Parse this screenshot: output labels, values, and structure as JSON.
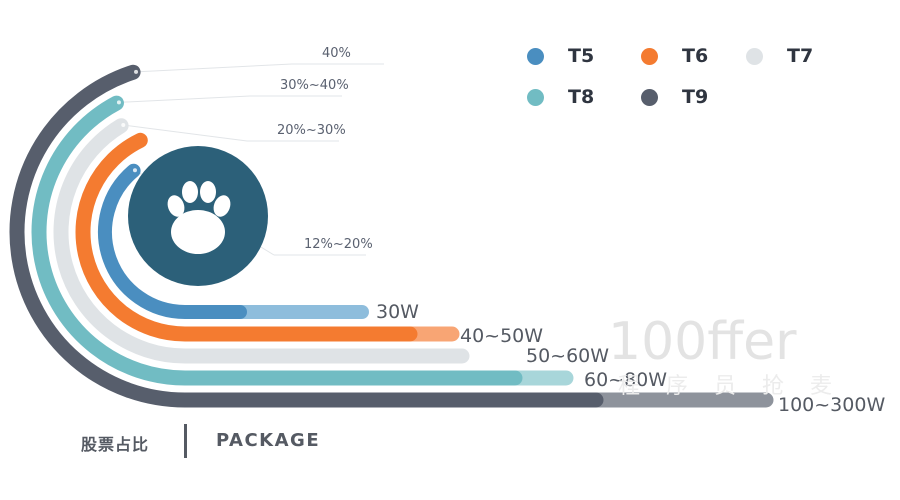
{
  "chart_data": {
    "type": "radial-bar",
    "series": [
      {
        "level": "T5",
        "color": "#4a8ec0",
        "light_color": "#8ebddc",
        "range_label": "12%~20%",
        "salary_label": "30W"
      },
      {
        "level": "T6",
        "color": "#f47b30",
        "light_color": "#f8a574",
        "range_label": "",
        "salary_label": "40~50W"
      },
      {
        "level": "T7",
        "color": "#dfe3e6",
        "light_color": "#dfe3e6",
        "range_label": "20%~30%",
        "salary_label": "50~60W"
      },
      {
        "level": "T8",
        "color": "#71bcc3",
        "light_color": "#a8d6da",
        "range_label": "30%~40%",
        "salary_label": "60~80W"
      },
      {
        "level": "T9",
        "color": "#575e6c",
        "light_color": "#8e939c",
        "range_label": "40%",
        "salary_label": "100~300W"
      }
    ]
  },
  "legend": [
    {
      "label": "T5",
      "color": "#4a8ec0"
    },
    {
      "label": "T6",
      "color": "#f47b30"
    },
    {
      "label": "T7",
      "color": "#dfe3e6"
    },
    {
      "label": "T8",
      "color": "#71bcc3"
    },
    {
      "label": "T9",
      "color": "#575e6c"
    }
  ],
  "footer": {
    "label_cn": "股票占比",
    "label_en": "PACKAGE"
  },
  "watermark": {
    "main": "100ffer",
    "sub": "程序员抢麦"
  }
}
